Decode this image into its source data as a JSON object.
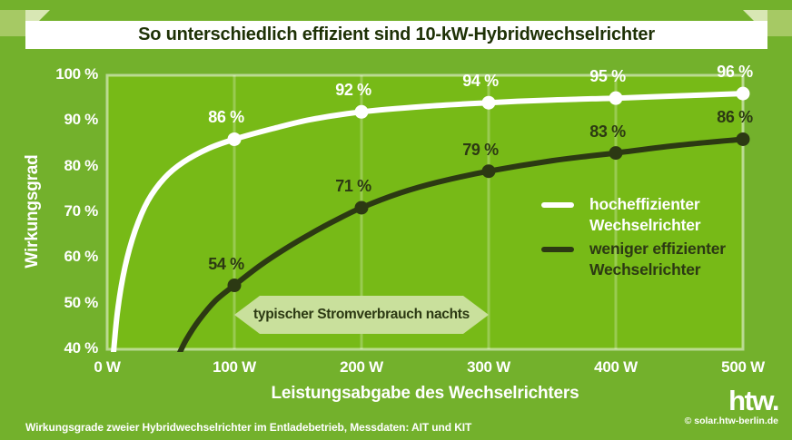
{
  "title": "So unterschiedlich effizient sind 10-kW-Hybridwechselrichter",
  "colors": {
    "background": "#73b12c",
    "plot_background": "#77ba17",
    "grid_line": "rgba(255,255,255,0.25)",
    "plot_border": "rgba(255,255,255,0.5)",
    "series_high": "#ffffff",
    "series_low": "#2c3913",
    "badge_background": "#c9e09c",
    "ribbon_tab": "#a6c964",
    "ribbon_fold": "#d8e7b4",
    "ribbon_band": "#ffffff",
    "title_text": "#1e3106"
  },
  "chart_data": {
    "type": "line",
    "title": "So unterschiedlich effizient sind 10-kW-Hybridwechselrichter",
    "xlabel": "Leistungsabgabe des Wechselrichters",
    "ylabel": "Wirkungsgrad",
    "xlim": [
      0,
      500
    ],
    "ylim": [
      40,
      100
    ],
    "grid": "vertical",
    "legend_position": "right-middle",
    "annotation": "typischer Stromverbrauch nachts",
    "x_ticks": [
      {
        "value": 0,
        "label": "0 W"
      },
      {
        "value": 100,
        "label": "100 W"
      },
      {
        "value": 200,
        "label": "200 W"
      },
      {
        "value": 300,
        "label": "300 W"
      },
      {
        "value": 400,
        "label": "400 W"
      },
      {
        "value": 500,
        "label": "500 W"
      }
    ],
    "y_ticks": [
      {
        "value": 100,
        "label": "100 %"
      },
      {
        "value": 90,
        "label": "90 %"
      },
      {
        "value": 80,
        "label": "80 %"
      },
      {
        "value": 70,
        "label": "70 %"
      },
      {
        "value": 60,
        "label": "60 %"
      },
      {
        "value": 50,
        "label": "50 %"
      },
      {
        "value": 40,
        "label": "40 %"
      }
    ],
    "series": [
      {
        "name": "hocheffizienter Wechselrichter",
        "color": "#ffffff",
        "points": [
          {
            "x": 100,
            "y": 86,
            "label": "86 %"
          },
          {
            "x": 200,
            "y": 92,
            "label": "92 %"
          },
          {
            "x": 300,
            "y": 94,
            "label": "94 %"
          },
          {
            "x": 400,
            "y": 95,
            "label": "95 %"
          },
          {
            "x": 500,
            "y": 96,
            "label": "96 %"
          }
        ],
        "shape": [
          [
            4,
            36
          ],
          [
            8,
            48
          ],
          [
            14,
            58
          ],
          [
            22,
            66
          ],
          [
            32,
            72.5
          ],
          [
            45,
            77.5
          ],
          [
            60,
            81
          ],
          [
            80,
            84
          ],
          [
            100,
            86
          ],
          [
            130,
            88.3
          ],
          [
            160,
            90.3
          ],
          [
            200,
            92
          ],
          [
            250,
            93.2
          ],
          [
            300,
            94
          ],
          [
            350,
            94.6
          ],
          [
            400,
            95
          ],
          [
            450,
            95.5
          ],
          [
            500,
            96
          ]
        ]
      },
      {
        "name": "weniger effizienter Wechselrichter",
        "color": "#2c3913",
        "points": [
          {
            "x": 100,
            "y": 54,
            "label": "54 %"
          },
          {
            "x": 200,
            "y": 71,
            "label": "71 %"
          },
          {
            "x": 300,
            "y": 79,
            "label": "79 %"
          },
          {
            "x": 400,
            "y": 83,
            "label": "83 %"
          },
          {
            "x": 500,
            "y": 86,
            "label": "86 %"
          }
        ],
        "shape": [
          [
            55,
            38
          ],
          [
            62,
            42
          ],
          [
            72,
            46.3
          ],
          [
            85,
            50.6
          ],
          [
            100,
            54
          ],
          [
            120,
            58.3
          ],
          [
            140,
            62
          ],
          [
            160,
            65.3
          ],
          [
            180,
            68.3
          ],
          [
            200,
            71
          ],
          [
            230,
            74.2
          ],
          [
            260,
            76.6
          ],
          [
            300,
            79
          ],
          [
            350,
            81.3
          ],
          [
            400,
            83
          ],
          [
            450,
            84.7
          ],
          [
            500,
            86
          ]
        ]
      }
    ]
  },
  "legend": [
    {
      "line1": "hocheffizienter",
      "line2": "Wechselrichter"
    },
    {
      "line1": "weniger effizienter",
      "line2": "Wechselrichter"
    }
  ],
  "badge": {
    "text": "typischer Stromverbrauch nachts"
  },
  "footer": {
    "source": "Wirkungsgrade zweier Hybridwechselrichter im Entladebetrieb, Messdaten: AIT und KIT",
    "copyright": "© solar.htw-berlin.de"
  },
  "logo": {
    "text": "htw."
  }
}
